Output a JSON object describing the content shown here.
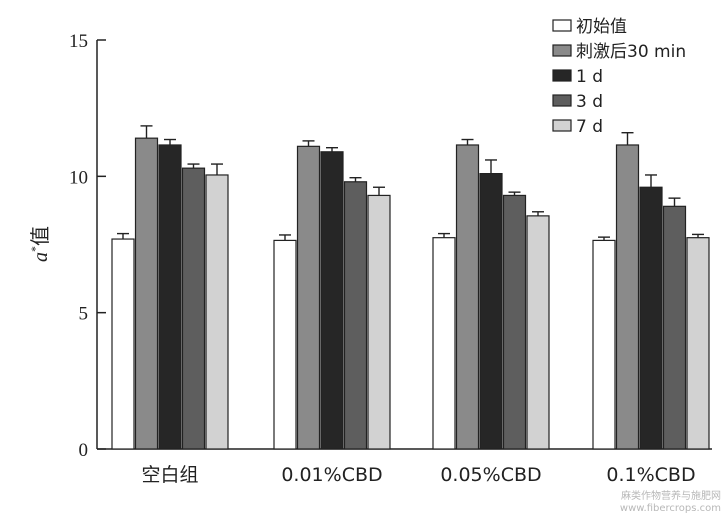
{
  "chart_data": {
    "type": "bar",
    "categories": [
      "空白组",
      "0.01%CBD",
      "0.05%CBD",
      "0.1%CBD"
    ],
    "series": [
      {
        "name": "初始值",
        "color": "#ffffff",
        "values": [
          7.7,
          7.65,
          7.75,
          7.65
        ],
        "errors": [
          0.2,
          0.2,
          0.15,
          0.12
        ]
      },
      {
        "name": "刺激后30 min",
        "color": "#8a8a8a",
        "values": [
          11.4,
          11.1,
          11.15,
          11.15
        ],
        "errors": [
          0.45,
          0.2,
          0.2,
          0.45
        ]
      },
      {
        "name": "1 d",
        "color": "#262626",
        "values": [
          11.15,
          10.9,
          10.1,
          9.6
        ],
        "errors": [
          0.2,
          0.15,
          0.5,
          0.45
        ]
      },
      {
        "name": "3 d",
        "color": "#5e5e5e",
        "values": [
          10.3,
          9.8,
          9.3,
          8.9
        ],
        "errors": [
          0.15,
          0.15,
          0.12,
          0.3
        ]
      },
      {
        "name": "7 d",
        "color": "#d2d2d2",
        "values": [
          10.05,
          9.3,
          8.55,
          7.75
        ],
        "errors": [
          0.4,
          0.3,
          0.15,
          0.12
        ]
      }
    ],
    "ylabel_italic": "a",
    "ylabel_sup": "*",
    "ylabel_rest": "值",
    "ylim": [
      0,
      15
    ],
    "yticks": [
      0,
      5,
      10,
      15
    ],
    "grid": false,
    "legend_position": "top-right"
  },
  "watermark": {
    "line1": "麻类作物营养与施肥网",
    "line2": "www.fibercrops.com"
  }
}
